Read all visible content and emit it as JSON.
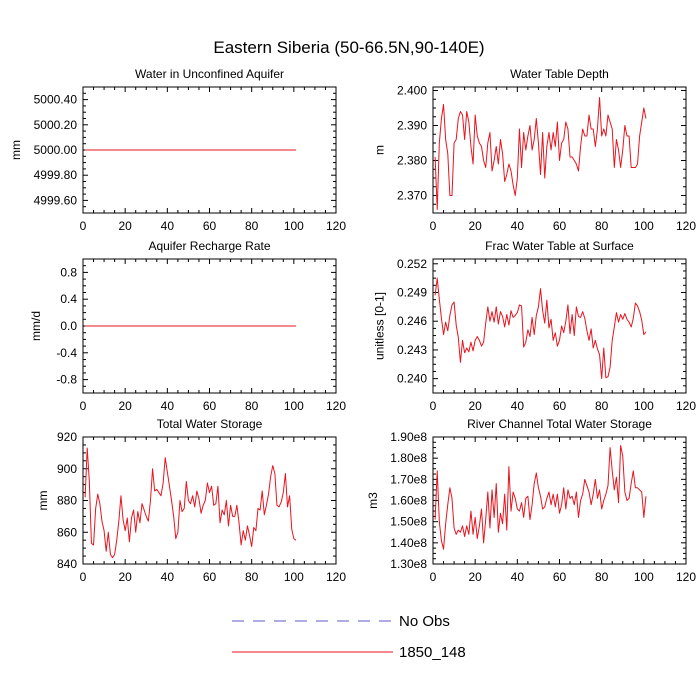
{
  "figure_title": "Eastern Siberia (50-66.5N,90-140E)",
  "legend": [
    {
      "label": "No Obs",
      "color": "#5b5bc8",
      "style": "dashed"
    },
    {
      "label": "1850_148",
      "color": "#e8141e",
      "style": "solid"
    }
  ],
  "chart_data": [
    {
      "type": "line",
      "title": "Water in Unconfined Aquifer",
      "ylabel": "mm",
      "xlim": [
        0,
        120
      ],
      "xticks": [
        "0",
        "20",
        "40",
        "60",
        "80",
        "100",
        "120"
      ],
      "xtick_values": [
        0,
        20,
        40,
        60,
        80,
        100,
        120
      ],
      "ylim": [
        4999.5,
        5000.5
      ],
      "yticks": [
        "4999.60",
        "4999.80",
        "5000.00",
        "5000.20",
        "5000.40"
      ],
      "ytick_values": [
        4999.6,
        4999.8,
        5000.0,
        5000.2,
        5000.4
      ],
      "series": [
        {
          "name": "1850_148",
          "color": "#e8141e",
          "x_start": 1,
          "values": [
            5000,
            5000,
            5000,
            5000,
            5000,
            5000,
            5000,
            5000,
            5000,
            5000,
            5000,
            5000,
            5000,
            5000,
            5000,
            5000,
            5000,
            5000,
            5000,
            5000,
            5000,
            5000,
            5000,
            5000,
            5000,
            5000,
            5000,
            5000,
            5000,
            5000,
            5000,
            5000,
            5000,
            5000,
            5000,
            5000,
            5000,
            5000,
            5000,
            5000,
            5000,
            5000,
            5000,
            5000,
            5000,
            5000,
            5000,
            5000,
            5000,
            5000,
            5000,
            5000,
            5000,
            5000,
            5000,
            5000,
            5000,
            5000,
            5000,
            5000,
            5000,
            5000,
            5000,
            5000,
            5000,
            5000,
            5000,
            5000,
            5000,
            5000,
            5000,
            5000,
            5000,
            5000,
            5000,
            5000,
            5000,
            5000,
            5000,
            5000,
            5000,
            5000,
            5000,
            5000,
            5000,
            5000,
            5000,
            5000,
            5000,
            5000,
            5000,
            5000,
            5000,
            5000,
            5000,
            5000,
            5000,
            5000,
            5000,
            5000,
            5000
          ]
        }
      ]
    },
    {
      "type": "line",
      "title": "Water Table Depth",
      "ylabel": "m",
      "xlim": [
        0,
        120
      ],
      "xticks": [
        "0",
        "20",
        "40",
        "60",
        "80",
        "100",
        "120"
      ],
      "xtick_values": [
        0,
        20,
        40,
        60,
        80,
        100,
        120
      ],
      "ylim": [
        2.365,
        2.401
      ],
      "yticks": [
        "2.370",
        "2.380",
        "2.390",
        "2.400"
      ],
      "ytick_values": [
        2.37,
        2.38,
        2.39,
        2.4
      ],
      "series": [
        {
          "name": "1850_148",
          "color": "#e8141e",
          "x_start": 1,
          "values": [
            2.381,
            2.366,
            2.385,
            2.392,
            2.396,
            2.386,
            2.382,
            2.37,
            2.37,
            2.385,
            2.386,
            2.392,
            2.394,
            2.393,
            2.386,
            2.394,
            2.391,
            2.384,
            2.379,
            2.393,
            2.387,
            2.385,
            2.384,
            2.38,
            2.378,
            2.385,
            2.388,
            2.377,
            2.38,
            2.384,
            2.379,
            2.386,
            2.382,
            2.374,
            2.376,
            2.379,
            2.377,
            2.373,
            2.37,
            2.375,
            2.389,
            2.378,
            2.388,
            2.383,
            2.387,
            2.39,
            2.383,
            2.386,
            2.392,
            2.385,
            2.376,
            2.388,
            2.375,
            2.384,
            2.388,
            2.383,
            2.388,
            2.384,
            2.391,
            2.38,
            2.385,
            2.386,
            2.391,
            2.389,
            2.381,
            2.381,
            2.38,
            2.379,
            2.377,
            2.384,
            2.389,
            2.387,
            2.387,
            2.393,
            2.389,
            2.389,
            2.384,
            2.389,
            2.398,
            2.387,
            2.389,
            2.387,
            2.393,
            2.391,
            2.389,
            2.378,
            2.386,
            2.383,
            2.378,
            2.383,
            2.39,
            2.387,
            2.387,
            2.378,
            2.378,
            2.378,
            2.379,
            2.387,
            2.391,
            2.395,
            2.392
          ]
        }
      ]
    },
    {
      "type": "line",
      "title": "Aquifer Recharge Rate",
      "ylabel": "mm/d",
      "xlim": [
        0,
        120
      ],
      "xticks": [
        "0",
        "20",
        "40",
        "60",
        "80",
        "100",
        "120"
      ],
      "xtick_values": [
        0,
        20,
        40,
        60,
        80,
        100,
        120
      ],
      "ylim": [
        -1.0,
        1.0
      ],
      "yticks": [
        "-0.8",
        "-0.4",
        "0.0",
        "0.4",
        "0.8"
      ],
      "ytick_values": [
        -0.8,
        -0.4,
        0.0,
        0.4,
        0.8
      ],
      "series": [
        {
          "name": "1850_148",
          "color": "#e8141e",
          "x_start": 1,
          "values": [
            0,
            0,
            0,
            0,
            0,
            0,
            0,
            0,
            0,
            0,
            0,
            0,
            0,
            0,
            0,
            0,
            0,
            0,
            0,
            0,
            0,
            0,
            0,
            0,
            0,
            0,
            0,
            0,
            0,
            0,
            0,
            0,
            0,
            0,
            0,
            0,
            0,
            0,
            0,
            0,
            0,
            0,
            0,
            0,
            0,
            0,
            0,
            0,
            0,
            0,
            0,
            0,
            0,
            0,
            0,
            0,
            0,
            0,
            0,
            0,
            0,
            0,
            0,
            0,
            0,
            0,
            0,
            0,
            0,
            0,
            0,
            0,
            0,
            0,
            0,
            0,
            0,
            0,
            0,
            0,
            0,
            0,
            0,
            0,
            0,
            0,
            0,
            0,
            0,
            0,
            0,
            0,
            0,
            0,
            0,
            0,
            0,
            0,
            0,
            0,
            0
          ]
        }
      ]
    },
    {
      "type": "line",
      "title": "Frac Water Table at Surface",
      "ylabel": "unitless [0-1]",
      "xlim": [
        0,
        120
      ],
      "xticks": [
        "0",
        "20",
        "40",
        "60",
        "80",
        "100",
        "120"
      ],
      "xtick_values": [
        0,
        20,
        40,
        60,
        80,
        100,
        120
      ],
      "ylim": [
        0.2385,
        0.2525
      ],
      "yticks": [
        "0.240",
        "0.243",
        "0.246",
        "0.249",
        "0.252"
      ],
      "ytick_values": [
        0.24,
        0.243,
        0.246,
        0.249,
        0.252
      ],
      "series": [
        {
          "name": "1850_148",
          "color": "#e8141e",
          "x_start": 1,
          "values": [
            0.2487,
            0.2505,
            0.2483,
            0.2463,
            0.2446,
            0.2459,
            0.245,
            0.2466,
            0.2477,
            0.248,
            0.2456,
            0.2443,
            0.2417,
            0.244,
            0.2427,
            0.2432,
            0.2428,
            0.2438,
            0.2429,
            0.244,
            0.2444,
            0.244,
            0.2434,
            0.2438,
            0.2458,
            0.2475,
            0.246,
            0.247,
            0.2459,
            0.2475,
            0.2457,
            0.247,
            0.2465,
            0.2454,
            0.2467,
            0.2456,
            0.2471,
            0.2464,
            0.2466,
            0.2469,
            0.2477,
            0.2476,
            0.2433,
            0.2438,
            0.2451,
            0.2444,
            0.2464,
            0.2446,
            0.2466,
            0.2475,
            0.2494,
            0.2471,
            0.2458,
            0.2482,
            0.2453,
            0.2462,
            0.244,
            0.2448,
            0.2434,
            0.244,
            0.2455,
            0.2448,
            0.246,
            0.2477,
            0.2447,
            0.2467,
            0.2445,
            0.2475,
            0.2465,
            0.2464,
            0.247,
            0.2463,
            0.245,
            0.244,
            0.2452,
            0.2432,
            0.244,
            0.2431,
            0.2425,
            0.24,
            0.2432,
            0.2401,
            0.2402,
            0.2412,
            0.244,
            0.2454,
            0.2469,
            0.2459,
            0.2467,
            0.2462,
            0.2468,
            0.2462,
            0.2459,
            0.2454,
            0.2463,
            0.2479,
            0.2476,
            0.247,
            0.2461,
            0.2446,
            0.2449
          ]
        }
      ]
    },
    {
      "type": "line",
      "title": "Total Water Storage",
      "ylabel": "mm",
      "xlim": [
        0,
        120
      ],
      "xticks": [
        "0",
        "20",
        "40",
        "60",
        "80",
        "100",
        "120"
      ],
      "xtick_values": [
        0,
        20,
        40,
        60,
        80,
        100,
        120
      ],
      "ylim": [
        840,
        920
      ],
      "yticks": [
        "840",
        "860",
        "880",
        "900",
        "920"
      ],
      "ytick_values": [
        840,
        860,
        880,
        900,
        920
      ],
      "series": [
        {
          "name": "1850_148",
          "color": "#e8141e",
          "x_start": 1,
          "values": [
            882,
            913,
            892,
            853,
            852,
            875,
            884,
            878,
            867,
            861,
            848,
            860,
            846,
            844,
            846,
            855,
            867,
            883,
            868,
            861,
            869,
            854,
            869,
            874,
            860,
            873,
            866,
            878,
            874,
            870,
            867,
            880,
            900,
            886,
            887,
            885,
            883,
            891,
            907,
            898,
            889,
            880,
            870,
            856,
            860,
            880,
            873,
            875,
            892,
            880,
            878,
            883,
            876,
            886,
            881,
            872,
            877,
            880,
            891,
            885,
            889,
            877,
            878,
            889,
            866,
            874,
            871,
            880,
            864,
            877,
            870,
            870,
            877,
            866,
            852,
            861,
            855,
            864,
            858,
            851,
            863,
            861,
            875,
            874,
            886,
            871,
            877,
            884,
            895,
            902,
            897,
            877,
            876,
            879,
            885,
            897,
            876,
            883,
            862,
            856,
            855
          ]
        }
      ]
    },
    {
      "type": "line",
      "title": "River Channel Total Water Storage",
      "ylabel": "m3",
      "xlim": [
        0,
        120
      ],
      "xticks": [
        "0",
        "20",
        "40",
        "60",
        "80",
        "100",
        "120"
      ],
      "xtick_values": [
        0,
        20,
        40,
        60,
        80,
        100,
        120
      ],
      "ylim": [
        130000000,
        190000000
      ],
      "yticks": [
        "1.30e8",
        "1.40e8",
        "1.50e8",
        "1.60e8",
        "1.70e8",
        "1.80e8",
        "1.90e8"
      ],
      "ytick_values": [
        130000000,
        140000000,
        150000000,
        160000000,
        170000000,
        180000000,
        190000000
      ],
      "series": [
        {
          "name": "1850_148",
          "color": "#e8141e",
          "x_start": 1,
          "values": [
            151000000,
            174000000,
            150000000,
            141000000,
            137000000,
            149000000,
            158000000,
            166000000,
            161000000,
            147000000,
            144000000,
            146000000,
            145000000,
            148000000,
            143000000,
            148000000,
            144000000,
            155000000,
            144000000,
            152000000,
            142000000,
            148000000,
            156000000,
            140000000,
            151000000,
            164000000,
            147000000,
            165000000,
            152000000,
            168000000,
            145000000,
            154000000,
            149000000,
            163000000,
            146000000,
            176000000,
            155000000,
            164000000,
            161000000,
            156000000,
            155000000,
            159000000,
            152000000,
            161000000,
            162000000,
            151000000,
            158000000,
            168000000,
            173000000,
            166000000,
            162000000,
            156000000,
            157000000,
            161000000,
            164000000,
            158000000,
            163000000,
            157000000,
            163000000,
            154000000,
            158000000,
            166000000,
            156000000,
            165000000,
            161000000,
            162000000,
            158000000,
            164000000,
            152000000,
            160000000,
            163000000,
            170000000,
            167000000,
            164000000,
            158000000,
            163000000,
            170000000,
            161000000,
            165000000,
            156000000,
            160000000,
            163000000,
            167000000,
            185000000,
            174000000,
            165000000,
            171000000,
            159000000,
            186000000,
            181000000,
            164000000,
            160000000,
            161000000,
            168000000,
            174000000,
            166000000,
            166000000,
            165000000,
            164000000,
            152000000,
            162000000
          ]
        }
      ]
    }
  ]
}
